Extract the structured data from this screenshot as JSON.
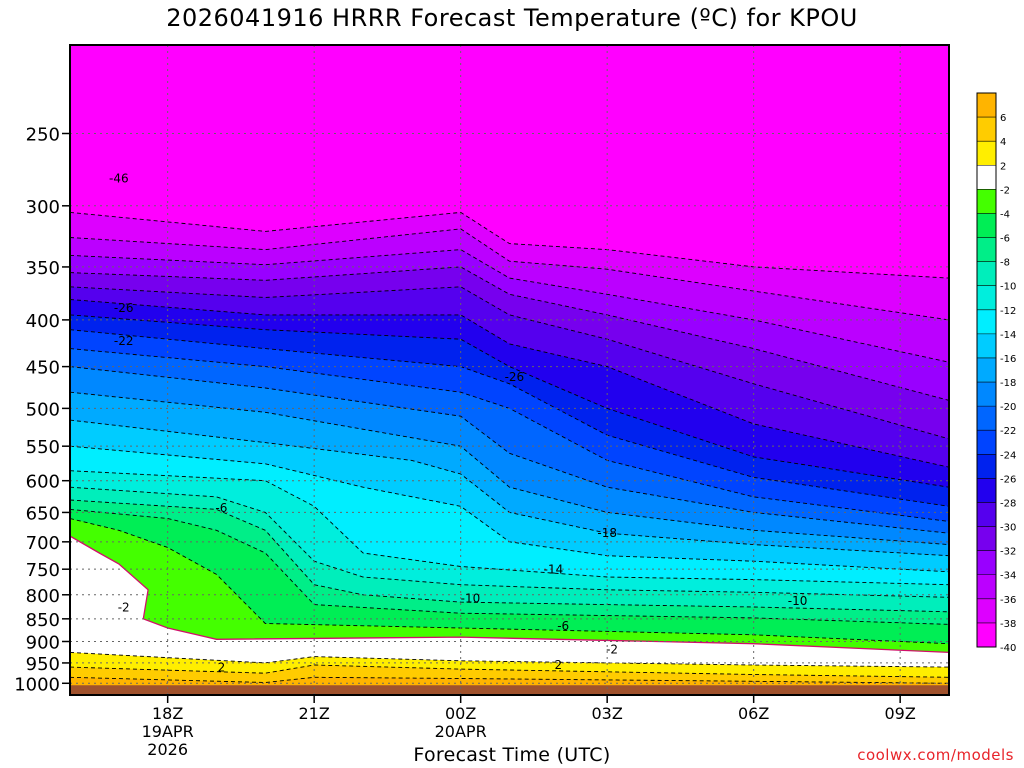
{
  "title": "2026041916 HRRR Forecast Temperature (ºC) for KPOU",
  "footer": "coolwx.com/models",
  "chart_data": {
    "type": "heatmap",
    "title": "2026041916 HRRR Forecast Temperature (ºC) for KPOU",
    "xlabel": "Forecast Time (UTC)",
    "ylabel": "",
    "x_range_hours": [
      16,
      34
    ],
    "y_range_hpa": [
      200,
      1030
    ],
    "y_scale": "log",
    "x_ticks": [
      {
        "hour": 18,
        "lines": [
          "18Z",
          "19APR",
          "2026"
        ]
      },
      {
        "hour": 21,
        "lines": [
          "21Z"
        ]
      },
      {
        "hour": 24,
        "lines": [
          "00Z",
          "20APR"
        ]
      },
      {
        "hour": 27,
        "lines": [
          "03Z"
        ]
      },
      {
        "hour": 30,
        "lines": [
          "06Z"
        ]
      },
      {
        "hour": 33,
        "lines": [
          "09Z"
        ]
      }
    ],
    "y_ticks": [
      250,
      300,
      350,
      400,
      450,
      500,
      550,
      600,
      650,
      700,
      750,
      800,
      850,
      900,
      950,
      1000
    ],
    "grid": true,
    "colorbar": {
      "placement": "right",
      "levels": [
        6,
        4,
        2,
        -2,
        -4,
        -6,
        -8,
        -10,
        -12,
        -14,
        -16,
        -18,
        -20,
        -22,
        -24,
        -26,
        -28,
        -30,
        -32,
        -34,
        -36,
        -38,
        -40
      ],
      "colors": [
        "#ffb400",
        "#ffcc00",
        "#ffee00",
        "#ffffff",
        "#44ff00",
        "#00ee55",
        "#00ee88",
        "#00eebb",
        "#00eedd",
        "#00eeff",
        "#00ccff",
        "#00aaff",
        "#0088ff",
        "#0066ff",
        "#0044ff",
        "#0022ee",
        "#2200ee",
        "#5500ee",
        "#7700ee",
        "#9900ff",
        "#bb00ff",
        "#dd00ff",
        "#ff00ff"
      ]
    },
    "contour_labels": [
      {
        "text": "-46",
        "hour": 17.0,
        "hpa": 280
      },
      {
        "text": "-26",
        "hour": 17.1,
        "hpa": 388
      },
      {
        "text": "-22",
        "hour": 17.1,
        "hpa": 422
      },
      {
        "text": "-26",
        "hour": 25.1,
        "hpa": 462
      },
      {
        "text": "-6",
        "hour": 19.1,
        "hpa": 643
      },
      {
        "text": "-18",
        "hour": 27.0,
        "hpa": 685
      },
      {
        "text": "-14",
        "hour": 25.9,
        "hpa": 751
      },
      {
        "text": "-10",
        "hour": 24.2,
        "hpa": 808
      },
      {
        "text": "-10",
        "hour": 30.9,
        "hpa": 813
      },
      {
        "text": "-6",
        "hour": 26.1,
        "hpa": 865
      },
      {
        "text": "-2",
        "hour": 17.1,
        "hpa": 826
      },
      {
        "text": "-2",
        "hour": 27.1,
        "hpa": 918
      },
      {
        "text": "2",
        "hour": 19.1,
        "hpa": 961
      },
      {
        "text": "2",
        "hour": 26.0,
        "hpa": 955
      }
    ],
    "bands": [
      {
        "color": "#ff00ff",
        "top": [
          [
            16,
            200
          ],
          [
            34,
            200
          ]
        ]
      },
      {
        "color": "#dd00ff",
        "top": [
          [
            16,
            305
          ],
          [
            20,
            320
          ],
          [
            24,
            305
          ],
          [
            25,
            330
          ],
          [
            27,
            335
          ],
          [
            30,
            350
          ],
          [
            34,
            360
          ]
        ]
      },
      {
        "color": "#bb00ff",
        "top": [
          [
            16,
            325
          ],
          [
            20,
            335
          ],
          [
            24,
            318
          ],
          [
            25,
            345
          ],
          [
            27,
            352
          ],
          [
            30,
            372
          ],
          [
            34,
            400
          ]
        ]
      },
      {
        "color": "#9900ff",
        "top": [
          [
            16,
            340
          ],
          [
            20,
            348
          ],
          [
            24,
            335
          ],
          [
            25,
            360
          ],
          [
            27,
            375
          ],
          [
            30,
            400
          ],
          [
            34,
            445
          ]
        ]
      },
      {
        "color": "#7700ee",
        "top": [
          [
            16,
            355
          ],
          [
            20,
            362
          ],
          [
            24,
            350
          ],
          [
            25,
            375
          ],
          [
            27,
            395
          ],
          [
            30,
            430
          ],
          [
            34,
            490
          ]
        ]
      },
      {
        "color": "#5500ee",
        "top": [
          [
            16,
            368
          ],
          [
            20,
            378
          ],
          [
            24,
            368
          ],
          [
            25,
            395
          ],
          [
            27,
            420
          ],
          [
            30,
            470
          ],
          [
            34,
            540
          ]
        ]
      },
      {
        "color": "#2200ee",
        "top": [
          [
            16,
            380
          ],
          [
            20,
            395
          ],
          [
            24,
            395
          ],
          [
            25,
            425
          ],
          [
            27,
            450
          ],
          [
            30,
            520
          ],
          [
            34,
            580
          ]
        ]
      },
      {
        "color": "#0022ee",
        "top": [
          [
            16,
            395
          ],
          [
            20,
            410
          ],
          [
            24,
            420
          ],
          [
            25,
            450
          ],
          [
            27,
            500
          ],
          [
            30,
            565
          ],
          [
            34,
            610
          ]
        ]
      },
      {
        "color": "#0044ff",
        "top": [
          [
            16,
            410
          ],
          [
            20,
            430
          ],
          [
            24,
            450
          ],
          [
            25,
            470
          ],
          [
            27,
            535
          ],
          [
            30,
            595
          ],
          [
            34,
            640
          ]
        ]
      },
      {
        "color": "#0066ff",
        "top": [
          [
            16,
            430
          ],
          [
            20,
            450
          ],
          [
            24,
            480
          ],
          [
            25,
            500
          ],
          [
            27,
            570
          ],
          [
            30,
            625
          ],
          [
            34,
            665
          ]
        ]
      },
      {
        "color": "#0088ff",
        "top": [
          [
            16,
            450
          ],
          [
            20,
            475
          ],
          [
            24,
            510
          ],
          [
            25,
            560
          ],
          [
            27,
            610
          ],
          [
            30,
            650
          ],
          [
            34,
            685
          ]
        ]
      },
      {
        "color": "#00aaff",
        "top": [
          [
            16,
            480
          ],
          [
            20,
            505
          ],
          [
            24,
            550
          ],
          [
            25,
            610
          ],
          [
            27,
            650
          ],
          [
            30,
            680
          ],
          [
            34,
            705
          ]
        ]
      },
      {
        "color": "#00ccff",
        "top": [
          [
            16,
            515
          ],
          [
            20,
            545
          ],
          [
            23,
            570
          ],
          [
            24,
            590
          ],
          [
            25,
            650
          ],
          [
            27,
            685
          ],
          [
            30,
            705
          ],
          [
            34,
            725
          ]
        ]
      },
      {
        "color": "#00eeff",
        "top": [
          [
            16,
            550
          ],
          [
            20,
            575
          ],
          [
            22,
            610
          ],
          [
            24,
            640
          ],
          [
            25,
            700
          ],
          [
            27,
            725
          ],
          [
            30,
            735
          ],
          [
            34,
            755
          ]
        ]
      },
      {
        "color": "#00eedd",
        "top": [
          [
            16,
            585
          ],
          [
            20,
            600
          ],
          [
            21,
            640
          ],
          [
            22,
            720
          ],
          [
            24,
            745
          ],
          [
            27,
            765
          ],
          [
            30,
            770
          ],
          [
            34,
            780
          ]
        ]
      },
      {
        "color": "#00eebb",
        "top": [
          [
            16,
            610
          ],
          [
            19,
            625
          ],
          [
            20,
            650
          ],
          [
            21,
            735
          ],
          [
            22,
            765
          ],
          [
            24,
            780
          ],
          [
            27,
            790
          ],
          [
            30,
            795
          ],
          [
            34,
            805
          ]
        ]
      },
      {
        "color": "#00ee88",
        "top": [
          [
            16,
            630
          ],
          [
            19,
            645
          ],
          [
            20,
            680
          ],
          [
            21,
            780
          ],
          [
            22,
            800
          ],
          [
            24,
            815
          ],
          [
            27,
            820
          ],
          [
            30,
            825
          ],
          [
            34,
            835
          ]
        ]
      },
      {
        "color": "#00ee55",
        "top": [
          [
            16,
            645
          ],
          [
            18,
            660
          ],
          [
            19,
            680
          ],
          [
            20,
            720
          ],
          [
            21,
            820
          ],
          [
            24,
            838
          ],
          [
            30,
            848
          ],
          [
            34,
            862
          ]
        ]
      },
      {
        "color": "#44ff00",
        "top": [
          [
            16,
            660
          ],
          [
            17,
            680
          ],
          [
            18,
            710
          ],
          [
            19,
            760
          ],
          [
            20,
            860
          ],
          [
            24,
            870
          ],
          [
            30,
            885
          ],
          [
            34,
            905
          ]
        ]
      },
      {
        "color": "#ffffff",
        "top": [
          [
            16,
            690
          ],
          [
            16.6,
            720
          ],
          [
            17,
            740
          ],
          [
            17.6,
            790
          ],
          [
            17.5,
            850
          ],
          [
            18,
            870
          ],
          [
            19,
            895
          ],
          [
            24,
            890
          ],
          [
            30,
            905
          ],
          [
            34,
            925
          ]
        ]
      },
      {
        "color": "#ffee00",
        "top": [
          [
            16,
            925
          ],
          [
            20,
            950
          ],
          [
            21,
            935
          ],
          [
            24,
            945
          ],
          [
            30,
            955
          ],
          [
            34,
            960
          ]
        ]
      },
      {
        "color": "#ffcc00",
        "top": [
          [
            16,
            960
          ],
          [
            20,
            975
          ],
          [
            21,
            955
          ],
          [
            24,
            965
          ],
          [
            30,
            978
          ],
          [
            34,
            985
          ]
        ]
      },
      {
        "color": "#ffb400",
        "top": [
          [
            16,
            985
          ],
          [
            20,
            998
          ],
          [
            21,
            985
          ],
          [
            24,
            988
          ],
          [
            30,
            995
          ],
          [
            34,
            1000
          ]
        ]
      },
      {
        "color": "#a0522d",
        "top": [
          [
            16,
            1005
          ],
          [
            34,
            1005
          ]
        ]
      }
    ]
  }
}
